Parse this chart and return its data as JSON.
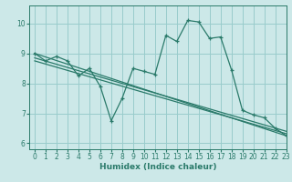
{
  "xlabel": "Humidex (Indice chaleur)",
  "bg_color": "#cce8e8",
  "line_color": "#2a7a6a",
  "grid_color": "#99cccc",
  "xlim": [
    -0.5,
    23
  ],
  "ylim": [
    5.8,
    10.6
  ],
  "yticks": [
    6,
    7,
    8,
    9,
    10
  ],
  "xticks": [
    0,
    1,
    2,
    3,
    4,
    5,
    6,
    7,
    8,
    9,
    10,
    11,
    12,
    13,
    14,
    15,
    16,
    17,
    18,
    19,
    20,
    21,
    22,
    23
  ],
  "series1_x": [
    0,
    1,
    2,
    3,
    4,
    5,
    6,
    7,
    8,
    9,
    10,
    11,
    12,
    13,
    14,
    15,
    16,
    17,
    18,
    19,
    20,
    21,
    22,
    23
  ],
  "series1_y": [
    9.0,
    8.75,
    8.9,
    8.75,
    8.25,
    8.5,
    7.9,
    6.75,
    7.5,
    8.5,
    8.4,
    8.3,
    9.6,
    9.4,
    10.1,
    10.05,
    9.5,
    9.55,
    8.45,
    7.1,
    6.95,
    6.85,
    6.5,
    6.25
  ],
  "series2_x": [
    0,
    23
  ],
  "series2_y": [
    9.0,
    6.25
  ],
  "series3_x": [
    0,
    23
  ],
  "series3_y": [
    8.85,
    6.4
  ],
  "series4_x": [
    0,
    23
  ],
  "series4_y": [
    8.75,
    6.32
  ]
}
